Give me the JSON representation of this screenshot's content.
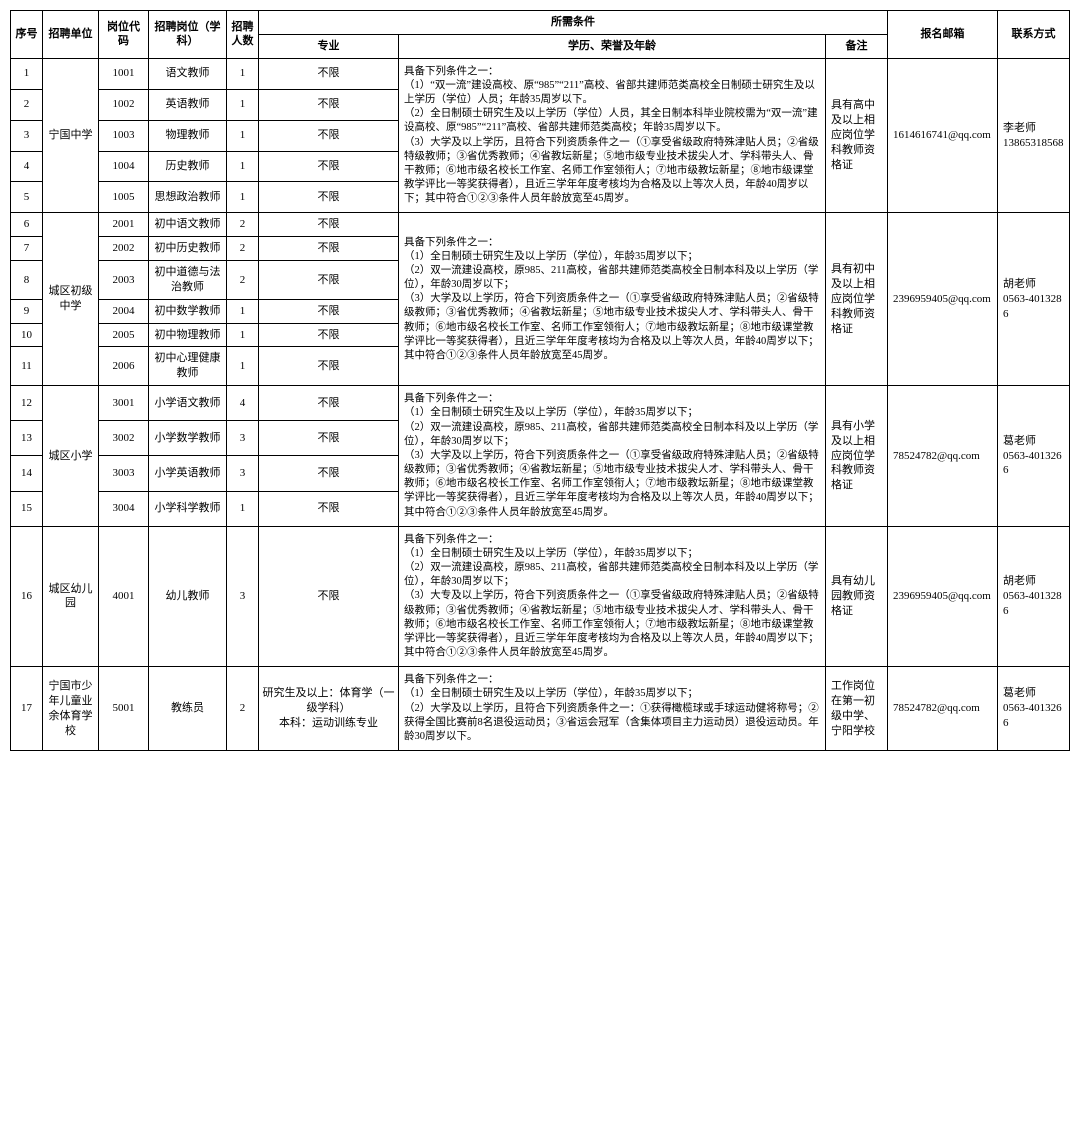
{
  "headers": {
    "seq": "序号",
    "unit": "招聘单位",
    "code": "岗位代码",
    "position": "招聘岗位（学科）",
    "count": "招聘人数",
    "conditions": "所需条件",
    "major": "专业",
    "requirements": "学历、荣誉及年龄",
    "note": "备注",
    "email": "报名邮箱",
    "contact": "联系方式"
  },
  "group1": {
    "unit": "宁国中学",
    "note": "具有高中及以上相应岗位学科教师资格证",
    "email": "1614616741@qq.com",
    "contact": "李老师\n13865318568",
    "req": "具备下列条件之一：\n（1）“双一流”建设高校、原“985”“211”高校、省部共建师范类高校全日制硕士研究生及以上学历（学位）人员；年龄35周岁以下。\n（2）全日制硕士研究生及以上学历（学位）人员，其全日制本科毕业院校需为“双一流”建设高校、原“985”“211”高校、省部共建师范类高校；年龄35周岁以下。\n（3）大学及以上学历，且符合下列资质条件之一（①享受省级政府特殊津贴人员；②省级特级教师；③省优秀教师；④省教坛新星；⑤地市级专业技术拔尖人才、学科带头人、骨干教师；⑥地市级名校长工作室、名师工作室领衔人；⑦地市级教坛新星；⑧地市级课堂教学评比一等奖获得者），且近三学年年度考核均为合格及以上等次人员，年龄40周岁以下；其中符合①②③条件人员年龄放宽至45周岁。",
    "rows": [
      {
        "seq": "1",
        "code": "1001",
        "pos": "语文教师",
        "num": "1",
        "major": "不限"
      },
      {
        "seq": "2",
        "code": "1002",
        "pos": "英语教师",
        "num": "1",
        "major": "不限"
      },
      {
        "seq": "3",
        "code": "1003",
        "pos": "物理教师",
        "num": "1",
        "major": "不限"
      },
      {
        "seq": "4",
        "code": "1004",
        "pos": "历史教师",
        "num": "1",
        "major": "不限"
      },
      {
        "seq": "5",
        "code": "1005",
        "pos": "思想政治教师",
        "num": "1",
        "major": "不限"
      }
    ]
  },
  "group2": {
    "unit": "城区初级中学",
    "note": "具有初中及以上相应岗位学科教师资格证",
    "email": "2396959405@qq.com",
    "contact": "胡老师\n0563-4013286",
    "req": "具备下列条件之一：\n（1）全日制硕士研究生及以上学历（学位），年龄35周岁以下；\n（2）双一流建设高校，原985、211高校，省部共建师范类高校全日制本科及以上学历（学位），年龄30周岁以下；\n（3）大学及以上学历，符合下列资质条件之一（①享受省级政府特殊津贴人员；②省级特级教师；③省优秀教师；④省教坛新星；⑤地市级专业技术拔尖人才、学科带头人、骨干教师；⑥地市级名校长工作室、名师工作室领衔人；⑦地市级教坛新星；⑧地市级课堂教学评比一等奖获得者），且近三学年年度考核均为合格及以上等次人员，年龄40周岁以下；其中符合①②③条件人员年龄放宽至45周岁。",
    "rows": [
      {
        "seq": "6",
        "code": "2001",
        "pos": "初中语文教师",
        "num": "2",
        "major": "不限"
      },
      {
        "seq": "7",
        "code": "2002",
        "pos": "初中历史教师",
        "num": "2",
        "major": "不限"
      },
      {
        "seq": "8",
        "code": "2003",
        "pos": "初中道德与法治教师",
        "num": "2",
        "major": "不限"
      },
      {
        "seq": "9",
        "code": "2004",
        "pos": "初中数学教师",
        "num": "1",
        "major": "不限"
      },
      {
        "seq": "10",
        "code": "2005",
        "pos": "初中物理教师",
        "num": "1",
        "major": "不限"
      },
      {
        "seq": "11",
        "code": "2006",
        "pos": "初中心理健康教师",
        "num": "1",
        "major": "不限"
      }
    ]
  },
  "group3": {
    "unit": "城区小学",
    "note": "具有小学及以上相应岗位学科教师资格证",
    "email": "78524782@qq.com",
    "contact": "葛老师\n0563-4013266",
    "req": "具备下列条件之一：\n（1）全日制硕士研究生及以上学历（学位），年龄35周岁以下；\n（2）双一流建设高校，原985、211高校，省部共建师范类高校全日制本科及以上学历（学位），年龄30周岁以下；\n（3）大学及以上学历，符合下列资质条件之一（①享受省级政府特殊津贴人员；②省级特级教师；③省优秀教师；④省教坛新星；⑤地市级专业技术拔尖人才、学科带头人、骨干教师；⑥地市级名校长工作室、名师工作室领衔人；⑦地市级教坛新星；⑧地市级课堂教学评比一等奖获得者），且近三学年年度考核均为合格及以上等次人员，年龄40周岁以下；其中符合①②③条件人员年龄放宽至45周岁。",
    "rows": [
      {
        "seq": "12",
        "code": "3001",
        "pos": "小学语文教师",
        "num": "4",
        "major": "不限"
      },
      {
        "seq": "13",
        "code": "3002",
        "pos": "小学数学教师",
        "num": "3",
        "major": "不限"
      },
      {
        "seq": "14",
        "code": "3003",
        "pos": "小学英语教师",
        "num": "3",
        "major": "不限"
      },
      {
        "seq": "15",
        "code": "3004",
        "pos": "小学科学教师",
        "num": "1",
        "major": "不限"
      }
    ]
  },
  "group4": {
    "unit": "城区幼儿园",
    "note": "具有幼儿园教师资格证",
    "email": "2396959405@qq.com",
    "contact": "胡老师\n0563-4013286",
    "req": "具备下列条件之一：\n（1）全日制硕士研究生及以上学历（学位），年龄35周岁以下；\n（2）双一流建设高校，原985、211高校，省部共建师范类高校全日制本科及以上学历（学位），年龄30周岁以下；\n（3）大专及以上学历，符合下列资质条件之一（①享受省级政府特殊津贴人员；②省级特级教师；③省优秀教师；④省教坛新星；⑤地市级专业技术拔尖人才、学科带头人、骨干教师；⑥地市级名校长工作室、名师工作室领衔人；⑦地市级教坛新星；⑧地市级课堂教学评比一等奖获得者），且近三学年年度考核均为合格及以上等次人员，年龄40周岁以下；其中符合①②③条件人员年龄放宽至45周岁。",
    "rows": [
      {
        "seq": "16",
        "code": "4001",
        "pos": "幼儿教师",
        "num": "3",
        "major": "不限"
      }
    ]
  },
  "group5": {
    "unit": "宁国市少年儿童业余体育学校",
    "note": "工作岗位在第一初级中学、宁阳学校",
    "email": "78524782@qq.com",
    "contact": "葛老师\n0563-4013266",
    "req": "具备下列条件之一：\n（1）全日制硕士研究生及以上学历（学位），年龄35周岁以下；\n（2）大学及以上学历，且符合下列资质条件之一：①获得橄榄球或手球运动健将称号；②获得全国比赛前8名退役运动员；③省运会冠军（含集体项目主力运动员）退役运动员。年龄30周岁以下。",
    "rows": [
      {
        "seq": "17",
        "code": "5001",
        "pos": "教练员",
        "num": "2",
        "major": "研究生及以上：体育学（一级学科）\n本科：运动训练专业"
      }
    ]
  }
}
